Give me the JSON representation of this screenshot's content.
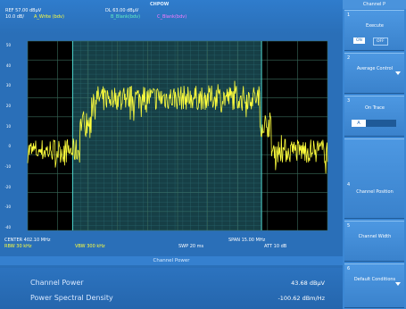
{
  "header": {
    "title": "CHPOW",
    "ref_level": "REF  57.00 dBμV",
    "detector_level": "DL  63.00 dBμV",
    "scale": "10.0 dB/",
    "trace_a": "A_Write (bdv)",
    "trace_b": "B_Blank(bdv)",
    "trace_c": "C_Blank(bdv)"
  },
  "y_axis_labels": [
    "50",
    "40",
    "30",
    "20",
    "10",
    "0",
    "-10",
    "-20",
    "-30",
    "-40"
  ],
  "info": {
    "center": "CENTER 402.10 MHz",
    "span": "SPAN 15.00 MHz",
    "rbw": "RBW 30 kHz",
    "vbw": "VBW 300 kHz",
    "sweep": "SWP 20 ms",
    "attenuation": "ATT 10 dB"
  },
  "measurement": {
    "header": "Channel Power",
    "rows": [
      {
        "label": "Channel Power",
        "value": "43.68 dBμV"
      },
      {
        "label": "Power Spectral Density",
        "value": "-100.62 dBm/Hz"
      }
    ]
  },
  "softkeys": {
    "title": "Channel P",
    "items": [
      {
        "num": "1",
        "label": "Execute",
        "on": "ON",
        "off": "OFF"
      },
      {
        "num": "2",
        "label": "Average Control"
      },
      {
        "num": "3",
        "label": "On Trace",
        "selected": "A"
      },
      {
        "num": "4",
        "label": "Channel Position"
      },
      {
        "num": "5",
        "label": "Channel Width"
      },
      {
        "num": "6",
        "label": "Default Conditions"
      }
    ]
  },
  "colors": {
    "background": "#2a6fb8",
    "plot_background": "#000000",
    "grid": "#3a6a5a",
    "trace": "#ffff3c",
    "channel_band": "#1a4a52",
    "channel_line": "#4fd8d0"
  },
  "chart_data": {
    "type": "line",
    "x_range": [
      394.6,
      409.6
    ],
    "ylim": [
      -50,
      57
    ],
    "channel_band": [
      396.85,
      406.3
    ],
    "series": [
      {
        "levels": [
          {
            "x_start": 394.6,
            "x_end": 397.2,
            "y": -5
          },
          {
            "x_start": 397.2,
            "x_end": 397.8,
            "y": 10
          },
          {
            "x_start": 397.8,
            "x_end": 406.2,
            "y": 25
          },
          {
            "x_start": 406.2,
            "x_end": 406.8,
            "y": 10
          },
          {
            "x_start": 406.8,
            "x_end": 409.6,
            "y": -5
          }
        ]
      }
    ]
  }
}
